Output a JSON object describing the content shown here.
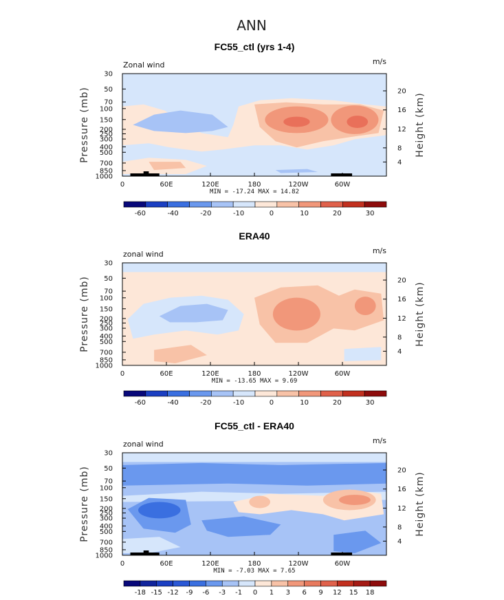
{
  "page_title": "ANN",
  "chart_data": [
    {
      "type": "contour",
      "title": "FC55_ctl (yrs 1-4)",
      "left_label": "Zonal wind",
      "right_label": "m/s",
      "ylabel": "Pressure (mb)",
      "y2label": "Height (km)",
      "x_ticks": [
        "0",
        "60E",
        "120E",
        "180",
        "120W",
        "60W"
      ],
      "y_ticks": [
        "30",
        "50",
        "70",
        "100",
        "150",
        "200",
        "250",
        "300",
        "400",
        "500",
        "700",
        "850",
        "1000"
      ],
      "y2_ticks": [
        "20",
        "16",
        "12",
        "8",
        "4"
      ],
      "stats": "MIN = -17.24   MAX =  14.82",
      "colorbar": {
        "labels": [
          "-60",
          "-40",
          "-20",
          "-10",
          "0",
          "10",
          "20",
          "30"
        ],
        "colors": [
          "#08087a",
          "#1b3fc2",
          "#3a6fe0",
          "#6a98ee",
          "#a7c3f6",
          "#d6e6fb",
          "#fde7d8",
          "#f8c2a7",
          "#f1977a",
          "#e0614b",
          "#c2301f",
          "#8e0c0c"
        ]
      },
      "fields": {
        "base": "#d6e6fb",
        "warm1": "#fde7d8",
        "warm2": "#f8c2a7",
        "warm3": "#f1977a",
        "cool1": "#a7c3f6",
        "terrain": "#000000"
      }
    },
    {
      "type": "contour",
      "title": "ERA40",
      "left_label": "zonal wind",
      "right_label": "m/s",
      "ylabel": "Pressure (mb)",
      "y2label": "Height (km)",
      "x_ticks": [
        "0",
        "60E",
        "120E",
        "180",
        "120W",
        "60W"
      ],
      "y_ticks": [
        "30",
        "50",
        "70",
        "100",
        "150",
        "200",
        "250",
        "300",
        "400",
        "500",
        "700",
        "850",
        "1000"
      ],
      "y2_ticks": [
        "20",
        "16",
        "12",
        "8",
        "4"
      ],
      "stats": "MIN = -13.65   MAX =   9.69",
      "colorbar": {
        "labels": [
          "-60",
          "-40",
          "-20",
          "-10",
          "0",
          "10",
          "20",
          "30"
        ],
        "colors": [
          "#08087a",
          "#1b3fc2",
          "#3a6fe0",
          "#6a98ee",
          "#a7c3f6",
          "#d6e6fb",
          "#fde7d8",
          "#f8c2a7",
          "#f1977a",
          "#e0614b",
          "#c2301f",
          "#8e0c0c"
        ]
      },
      "fields": {
        "base": "#fde7d8",
        "warm2": "#f8c2a7",
        "warm3": "#f1977a",
        "cool0": "#d6e6fb",
        "cool1": "#a7c3f6"
      }
    },
    {
      "type": "contour",
      "title": "FC55_ctl - ERA40",
      "left_label": "zonal wind",
      "right_label": "m/s",
      "ylabel": "Pressure (mb)",
      "y2label": "Height (km)",
      "x_ticks": [
        "0",
        "60E",
        "120E",
        "180",
        "120W",
        "60W"
      ],
      "y_ticks": [
        "30",
        "50",
        "70",
        "100",
        "150",
        "200",
        "250",
        "300",
        "400",
        "500",
        "700",
        "850",
        "1000"
      ],
      "y2_ticks": [
        "20",
        "16",
        "12",
        "8",
        "4"
      ],
      "stats": "MIN =  -7.03   MAX =   7.65",
      "colorbar": {
        "labels": [
          "-18",
          "-15",
          "-12",
          "-9",
          "-6",
          "-3",
          "-1",
          "0",
          "1",
          "3",
          "6",
          "9",
          "12",
          "15",
          "18"
        ],
        "colors": [
          "#08087a",
          "#10249c",
          "#1b3fc2",
          "#2a58d6",
          "#3a6fe0",
          "#6a98ee",
          "#a7c3f6",
          "#d6e6fb",
          "#fde7d8",
          "#f8c2a7",
          "#f1977a",
          "#e87a5e",
          "#e0614b",
          "#c2301f",
          "#a51a14",
          "#8e0c0c"
        ]
      },
      "fields": {
        "base": "#a7c3f6",
        "cool0": "#d6e6fb",
        "cool2": "#6a98ee",
        "cool3": "#3a6fe0",
        "warm1": "#fde7d8",
        "warm2": "#f8c2a7",
        "warm3": "#f1977a",
        "terrain": "#000000"
      }
    }
  ]
}
